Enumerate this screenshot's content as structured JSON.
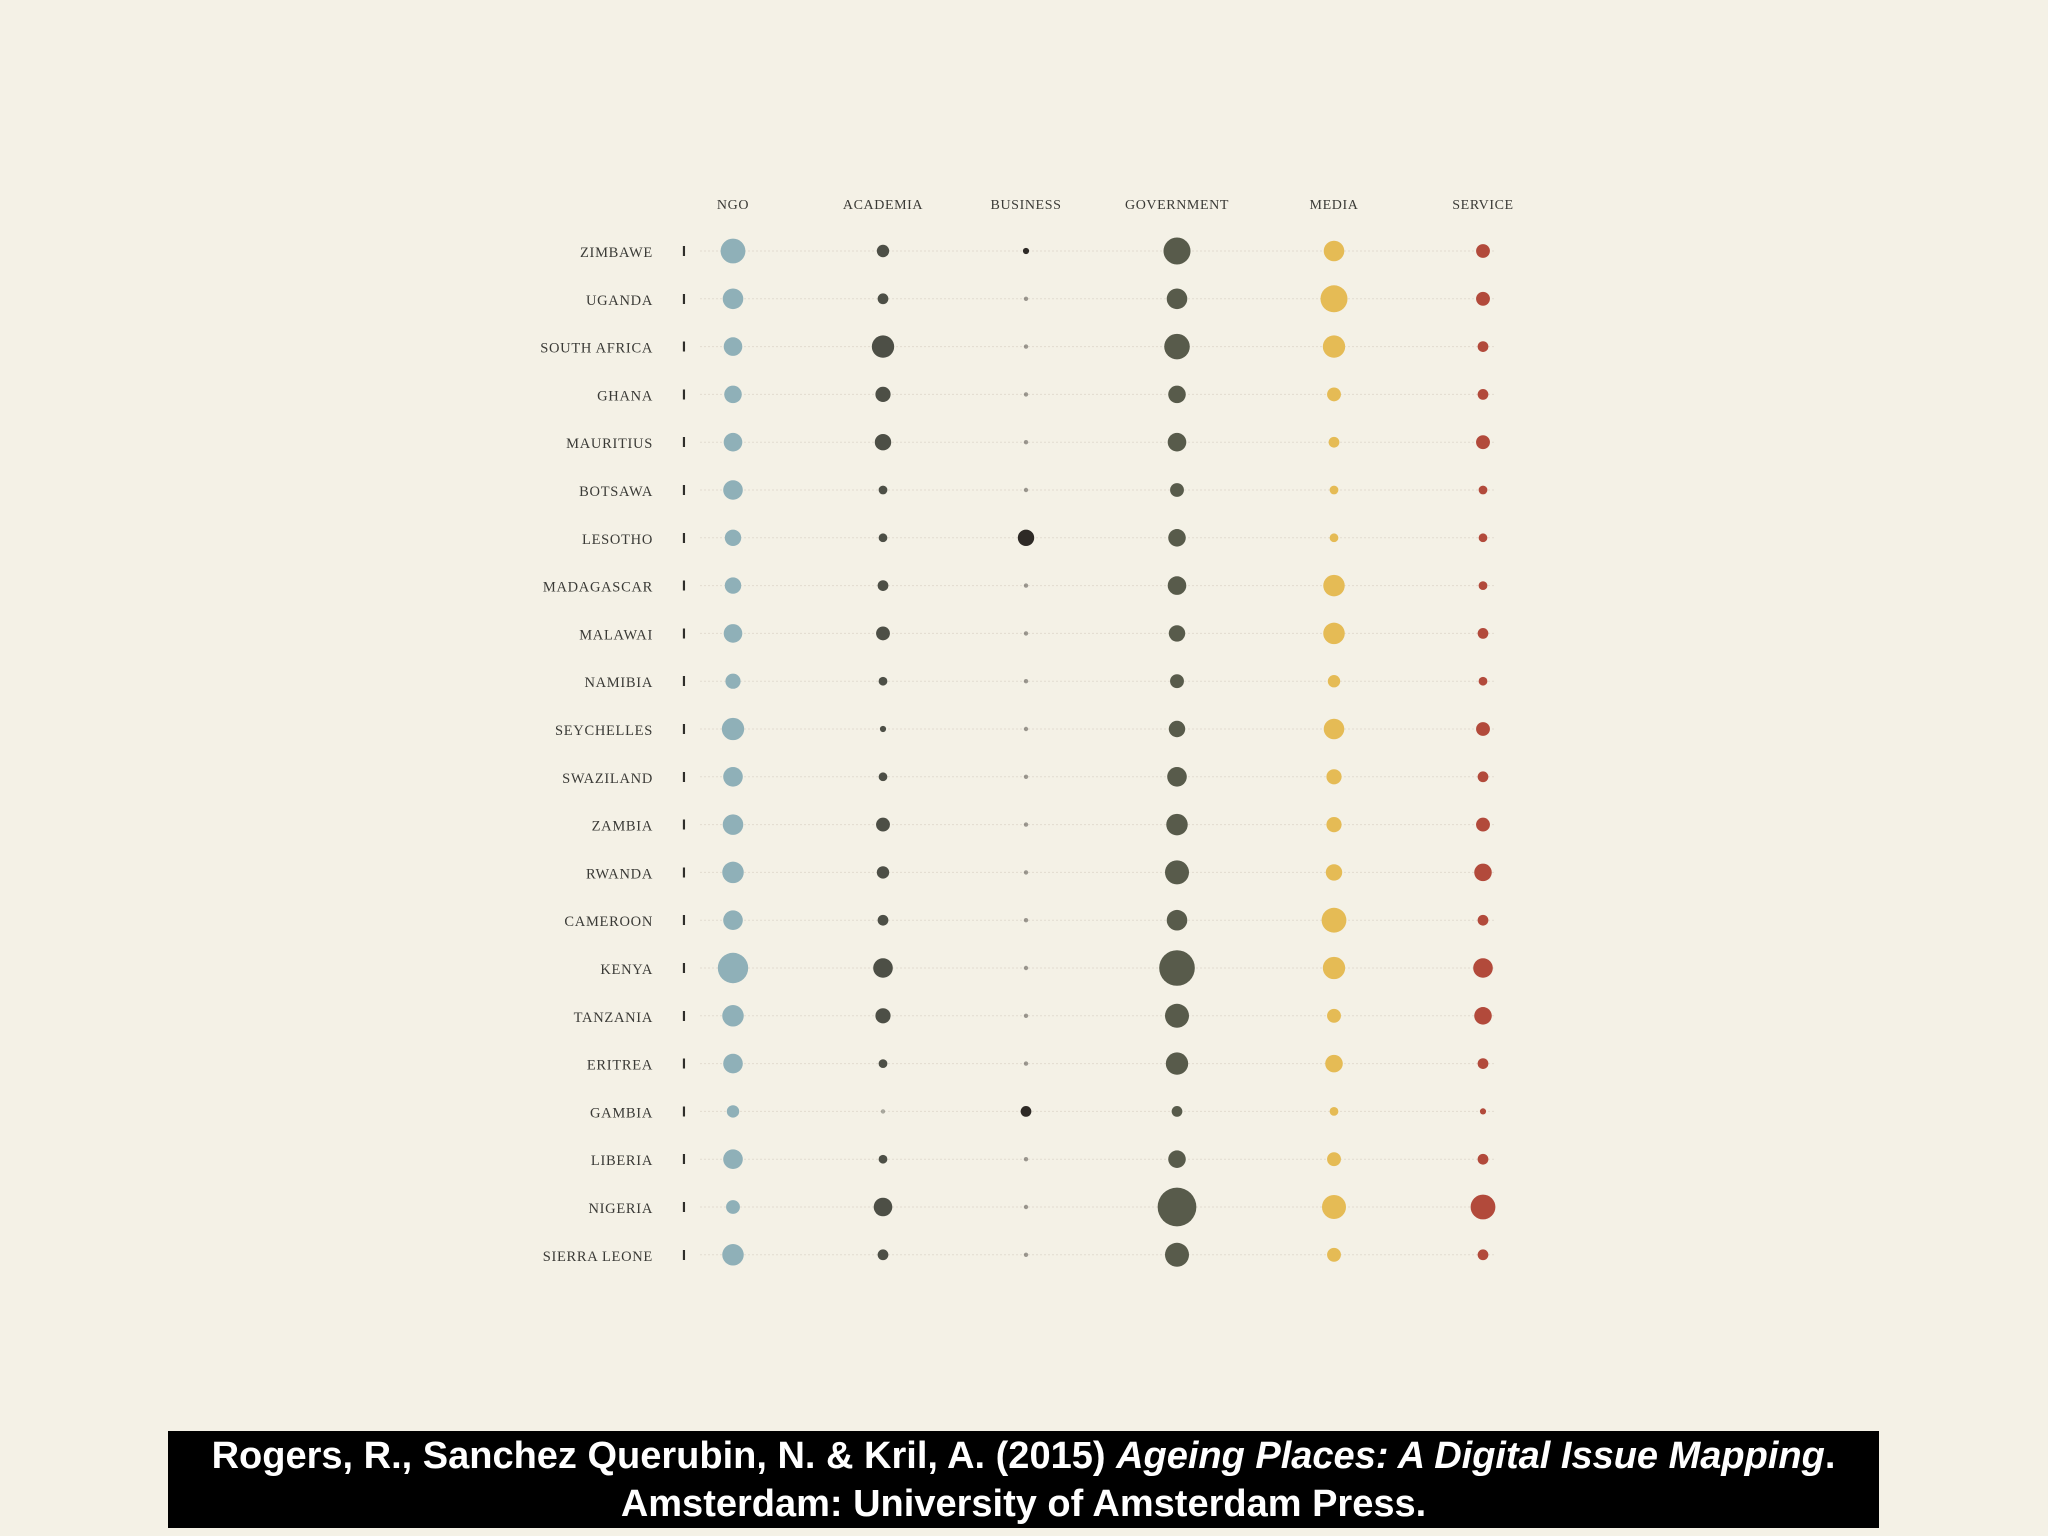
{
  "chart_data": {
    "type": "scatter",
    "subtype": "dot-matrix",
    "columns": [
      "NGO",
      "ACADEMIA",
      "BUSINESS",
      "GOVERNMENT",
      "MEDIA",
      "SERVICE"
    ],
    "rows": [
      "ZIMBAWE",
      "UGANDA",
      "SOUTH AFRICA",
      "GHANA",
      "MAURITIUS",
      "BOTSAWA",
      "LESOTHO",
      "MADAGASCAR",
      "MALAWAI",
      "NAMIBIA",
      "SEYCHELLES",
      "SWAZILAND",
      "ZAMBIA",
      "RWANDA",
      "CAMEROON",
      "KENYA",
      "TANZANIA",
      "ERITREA",
      "GAMBIA",
      "LIBERIA",
      "NIGERIA",
      "SIERRA LEONE"
    ],
    "row_marker": "I",
    "values": [
      [
        16,
        4,
        1,
        19,
        11,
        5
      ],
      [
        11,
        3,
        0.5,
        11,
        19,
        5
      ],
      [
        9,
        13,
        0.5,
        17,
        13,
        3
      ],
      [
        8,
        6,
        0.5,
        8,
        5,
        3
      ],
      [
        9,
        7,
        0.5,
        9,
        3,
        5
      ],
      [
        10,
        2,
        0.5,
        5,
        2,
        2
      ],
      [
        7,
        2,
        7,
        8,
        2,
        2
      ],
      [
        7,
        3,
        0.5,
        9,
        12,
        2
      ],
      [
        9,
        5,
        0.5,
        7,
        12,
        3
      ],
      [
        6,
        2,
        0.5,
        5,
        4,
        2
      ],
      [
        13,
        1,
        0.5,
        7,
        11,
        5
      ],
      [
        10,
        2,
        0.5,
        10,
        6,
        3
      ],
      [
        11,
        5,
        0.5,
        12,
        6,
        5
      ],
      [
        12,
        4,
        0.5,
        15,
        7,
        8
      ],
      [
        10,
        3,
        0.5,
        11,
        16,
        3
      ],
      [
        24,
        10,
        0.5,
        33,
        13,
        10
      ],
      [
        12,
        6,
        0.5,
        15,
        5,
        8
      ],
      [
        10,
        2,
        0.5,
        13,
        8,
        3
      ],
      [
        4,
        0.5,
        3,
        3,
        2,
        1
      ],
      [
        10,
        2,
        0.5,
        8,
        5,
        3
      ],
      [
        5,
        9,
        0.5,
        39,
        15,
        16
      ],
      [
        12,
        3,
        0.5,
        15,
        5,
        3
      ]
    ],
    "title": "",
    "xlabel": "",
    "ylabel": "",
    "grid": false,
    "legend": "none"
  },
  "colors": {
    "background": "#f4f1e6",
    "NGO": "#8fb0b8",
    "ACADEMIA": "#4d4f46",
    "BUSINESS": "#2e2a26",
    "GOVERNMENT": "#585b4b",
    "MEDIA": "#e5bb55",
    "SERVICE": "#b24a3b",
    "row_line": "#e2dcd0",
    "text": "#3a3a36"
  },
  "citation": {
    "line1_prefix": "Rogers, R., Sanchez Querubin, N. & Kril, A. (2015) ",
    "line1_title": "Ageing Places: A Digital Issue Mapping",
    "line1_suffix": ".",
    "line2": "Amsterdam: University of Amsterdam Press."
  }
}
